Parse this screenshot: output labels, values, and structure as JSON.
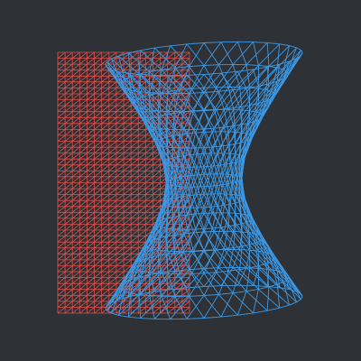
{
  "scene": {
    "background": "#2e3236",
    "objects": [
      {
        "name": "plane-mesh",
        "kind": "triangulated plane",
        "color": "#e0504c"
      },
      {
        "name": "hyperboloid-mesh",
        "kind": "hyperboloid of one sheet wireframe",
        "color": "#3b99e6"
      }
    ]
  }
}
